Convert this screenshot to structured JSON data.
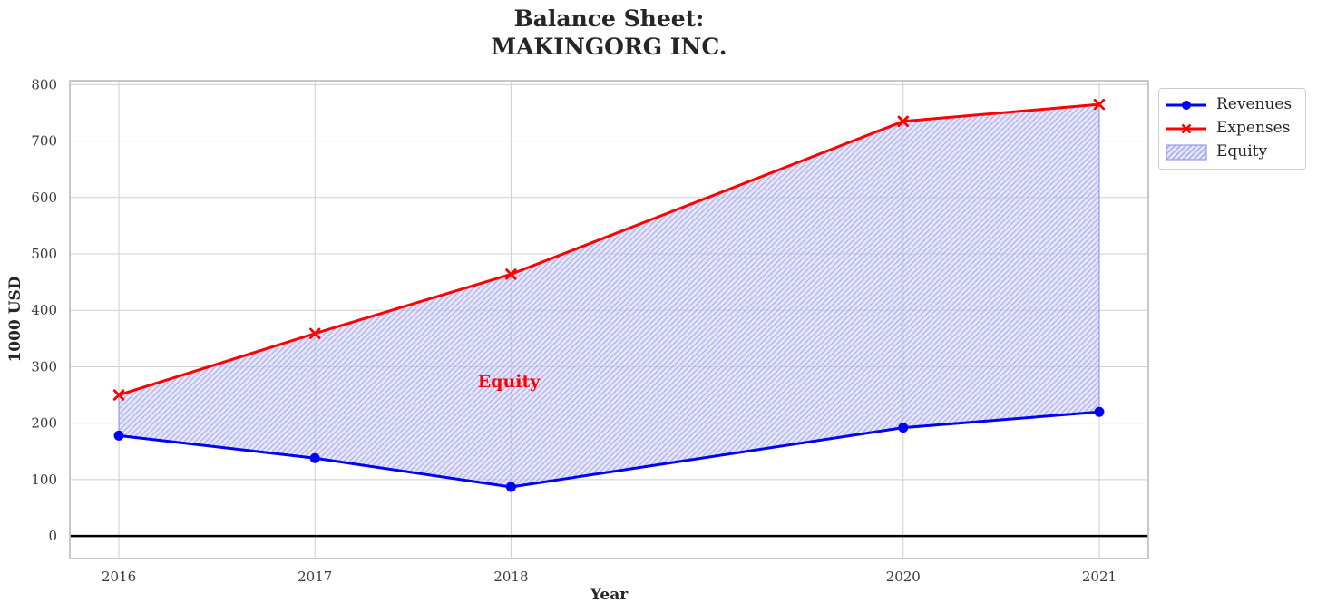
{
  "chart_data": {
    "type": "line",
    "title": "Balance Sheet:\nMAKINGORG INC.",
    "xlabel": "Year",
    "ylabel": "1000 USD",
    "x": [
      2016,
      2017,
      2018,
      2020,
      2021
    ],
    "series": [
      {
        "name": "Revenues",
        "color": "#0000ff",
        "marker": "circle",
        "values": [
          178,
          138,
          87,
          192,
          220
        ]
      },
      {
        "name": "Expenses",
        "color": "#ff0000",
        "marker": "x",
        "values": [
          250,
          359,
          464,
          735,
          765
        ]
      }
    ],
    "fill_between": {
      "name": "Equity",
      "between": [
        "Revenues",
        "Expenses"
      ],
      "face_color": "#d2d2f5",
      "hatch": "/",
      "hatch_color": "#9d9de2",
      "edge_color": "#9999e6"
    },
    "annotation": {
      "text": "Equity",
      "color": "#ff0000",
      "x": 2018,
      "y": 272
    },
    "axes": {
      "xlim": [
        2015.75,
        2021.25
      ],
      "ylim": [
        -40,
        807
      ],
      "xticks": [
        "2016",
        "2017",
        "2018",
        "2020",
        "2021"
      ],
      "xtick_values": [
        2016,
        2017,
        2018,
        2020,
        2021
      ],
      "yticks": [
        "0",
        "100",
        "200",
        "300",
        "400",
        "500",
        "600",
        "700",
        "800"
      ],
      "ytick_values": [
        0,
        100,
        200,
        300,
        400,
        500,
        600,
        700,
        800
      ],
      "grid": true,
      "zero_line": true,
      "grid_color": "#cfcfcf",
      "spine_color": "#c2c2c2",
      "tick_label_color": "#3a3a3a"
    },
    "legend": {
      "position": "outside-upper-right",
      "items": [
        "Revenues",
        "Expenses",
        "Equity"
      ]
    }
  }
}
